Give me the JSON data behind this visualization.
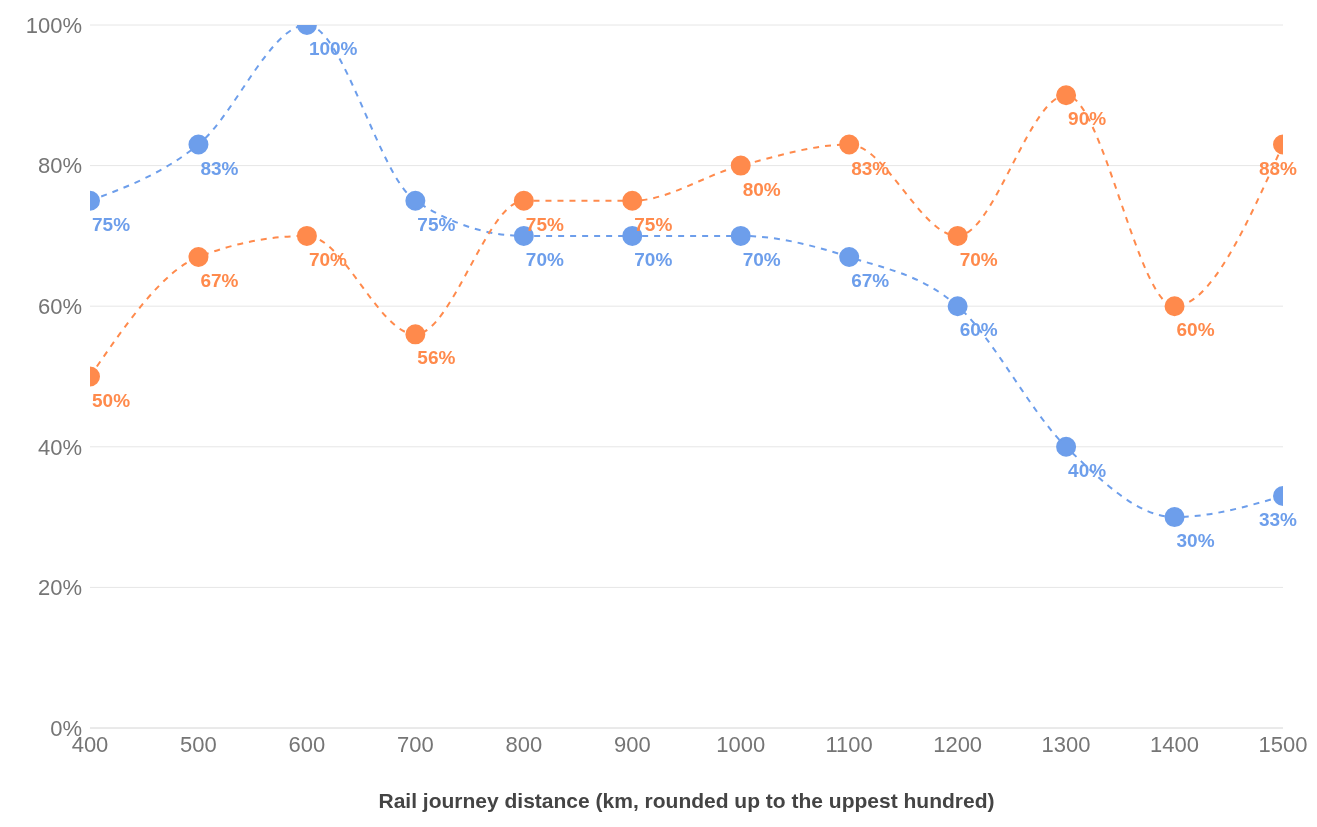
{
  "chart_data": {
    "type": "line",
    "xlabel": "Rail journey distance (km, rounded up to the uppest hundred)",
    "x": [
      400,
      500,
      600,
      700,
      800,
      900,
      1000,
      1100,
      1200,
      1300,
      1400,
      1500
    ],
    "series": [
      {
        "color": "#6d9eeb",
        "values": [
          75,
          83,
          100,
          75,
          70,
          70,
          70,
          67,
          60,
          40,
          30,
          33
        ],
        "value_labels": [
          "75%",
          "83%",
          "100%",
          "75%",
          "70%",
          "70%",
          "70%",
          "67%",
          "60%",
          "40%",
          "30%",
          "33%"
        ]
      },
      {
        "color": "#ff8a4c",
        "values": [
          50,
          67,
          70,
          56,
          75,
          75,
          80,
          83,
          70,
          90,
          60,
          83
        ],
        "value_labels": [
          "50%",
          "67%",
          "70%",
          "56%",
          "75%",
          "75%",
          "80%",
          "83%",
          "70%",
          "90%",
          "60%",
          "83%"
        ]
      }
    ],
    "xlim": [
      400,
      1500
    ],
    "xticks": [
      400,
      500,
      600,
      700,
      800,
      900,
      1000,
      1100,
      1200,
      1300,
      1400,
      1500
    ],
    "ylim": [
      0,
      100
    ],
    "yticks": [
      {
        "value": 0,
        "label": "0%"
      },
      {
        "value": 20,
        "label": "20%"
      },
      {
        "value": 40,
        "label": "40%"
      },
      {
        "value": 60,
        "label": "60%"
      },
      {
        "value": 80,
        "label": "80%"
      },
      {
        "value": 100,
        "label": "100%"
      }
    ],
    "grid": "y",
    "marker": "circle",
    "line_style": "dashed",
    "legend": false
  }
}
